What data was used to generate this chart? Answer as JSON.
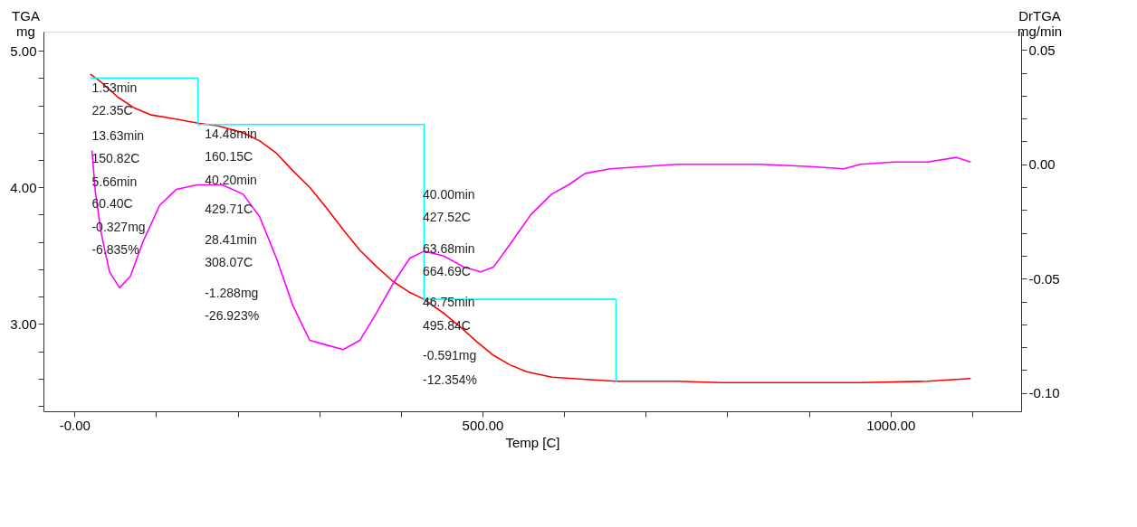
{
  "chart_data": {
    "type": "line",
    "xlabel": "Temp [C]",
    "ylabel": "TGA\nmg",
    "y2label": "DrTGA\nmg/min",
    "xlim": [
      -38,
      1160
    ],
    "ylim": [
      2.36,
      5.14
    ],
    "y2lim": [
      -0.108,
      0.058
    ],
    "xticks": [
      {
        "value": 0,
        "label": "-0.00"
      },
      {
        "value": 100,
        "label": null
      },
      {
        "value": 200,
        "label": null
      },
      {
        "value": 300,
        "label": null
      },
      {
        "value": 400,
        "label": null
      },
      {
        "value": 500,
        "label": "500.00"
      },
      {
        "value": 600,
        "label": null
      },
      {
        "value": 700,
        "label": null
      },
      {
        "value": 800,
        "label": null
      },
      {
        "value": 900,
        "label": null
      },
      {
        "value": 1000,
        "label": "1000.00"
      },
      {
        "value": 1100,
        "label": null
      }
    ],
    "yticks": [
      {
        "value": 2.4,
        "label": null
      },
      {
        "value": 2.6,
        "label": null
      },
      {
        "value": 2.8,
        "label": null
      },
      {
        "value": 3,
        "label": "3.00"
      },
      {
        "value": 3.2,
        "label": null
      },
      {
        "value": 3.4,
        "label": null
      },
      {
        "value": 3.6,
        "label": null
      },
      {
        "value": 3.8,
        "label": null
      },
      {
        "value": 4,
        "label": "4.00"
      },
      {
        "value": 4.2,
        "label": null
      },
      {
        "value": 4.4,
        "label": null
      },
      {
        "value": 4.6,
        "label": null
      },
      {
        "value": 4.8,
        "label": null
      },
      {
        "value": 5,
        "label": "5.00"
      }
    ],
    "y2ticks": [
      {
        "value": -0.1,
        "label": "-0.10"
      },
      {
        "value": -0.09,
        "label": null
      },
      {
        "value": -0.08,
        "label": null
      },
      {
        "value": -0.07,
        "label": null
      },
      {
        "value": -0.06,
        "label": null
      },
      {
        "value": -0.05,
        "label": "-0.05"
      },
      {
        "value": -0.04,
        "label": null
      },
      {
        "value": -0.03,
        "label": null
      },
      {
        "value": -0.02,
        "label": null
      },
      {
        "value": -0.01,
        "label": null
      },
      {
        "value": 0,
        "label": "0.00"
      },
      {
        "value": 0.01,
        "label": null
      },
      {
        "value": 0.02,
        "label": null
      },
      {
        "value": 0.03,
        "label": null
      },
      {
        "value": 0.04,
        "label": null
      },
      {
        "value": 0.05,
        "label": "0.05"
      }
    ],
    "grid": false,
    "series": [
      {
        "color": "#ff0000",
        "x": [
          19.4,
          32.7,
          53.2,
          73.6,
          94,
          124.7,
          151.3,
          175.9,
          206.5,
          227,
          247.4,
          267.9,
          288.3,
          308.8,
          329.2,
          349.7,
          370.1,
          390.6,
          411,
          428.4,
          452,
          472.4,
          492.8,
          513.3,
          533.7,
          554.2,
          584.9,
          636,
          663.6,
          738.2,
          792.4,
          963.3,
          1045,
          1098.2
        ],
        "values": [
          4.83,
          4.77,
          4.66,
          4.58,
          4.53,
          4.5,
          4.47,
          4.45,
          4.4,
          4.34,
          4.25,
          4.12,
          4.0,
          3.85,
          3.69,
          3.54,
          3.42,
          3.31,
          3.23,
          3.18,
          3.08,
          2.98,
          2.87,
          2.77,
          2.7,
          2.65,
          2.61,
          2.59,
          2.58,
          2.58,
          2.57,
          2.57,
          2.58,
          2.6
        ]
      },
      {
        "color": "#00ffff",
        "x": [
          19.4,
          151.3,
          151.3,
          428.4,
          428.4,
          663.6,
          663.6
        ],
        "values": [
          4.8,
          4.8,
          4.46,
          4.46,
          3.18,
          3.18,
          2.58
        ]
      },
      {
        "color": "#ff00ff",
        "axis": "y2",
        "x": [
          21.5,
          25.6,
          32.7,
          42.9,
          55.2,
          68.5,
          83.8,
          104.3,
          124.7,
          150.3,
          181,
          206.5,
          227,
          247.4,
          267.9,
          288.3,
          308.8,
          329.2,
          349.7,
          370.1,
          390.6,
          411,
          428.4,
          452,
          477.5,
          497.9,
          513.3,
          533.7,
          559.3,
          584.9,
          605.3,
          625.8,
          656.4,
          738.2,
          840.5,
          901.8,
          942.7,
          963.3,
          1004.1,
          1045,
          1080.8,
          1098.2
        ],
        "values": [
          0.006,
          -0.012,
          -0.03,
          -0.047,
          -0.054,
          -0.049,
          -0.034,
          -0.018,
          -0.011,
          -0.009,
          -0.009,
          -0.013,
          -0.023,
          -0.041,
          -0.062,
          -0.077,
          -0.079,
          -0.081,
          -0.077,
          -0.065,
          -0.052,
          -0.041,
          -0.038,
          -0.04,
          -0.045,
          -0.047,
          -0.045,
          -0.035,
          -0.022,
          -0.013,
          -0.009,
          -0.004,
          -0.002,
          0.0,
          0.0,
          -0.001,
          -0.002,
          0.0,
          0.001,
          0.001,
          0.003,
          0.001
        ]
      }
    ],
    "annotations": [
      "1.53min",
      "22.35C",
      "13.63min",
      "150.82C",
      "5.66min",
      "60.40C",
      "-0.327mg",
      "-6.835%",
      "14.48min",
      "160.15C",
      "40.20min",
      "429.71C",
      "28.41min",
      "308.07C",
      "-1.288mg",
      "-26.923%",
      "40.00min",
      "427.52C",
      "63.68min",
      "664.69C",
      "46.75min",
      "495.84C",
      "-0.591mg",
      "-12.354%"
    ]
  }
}
